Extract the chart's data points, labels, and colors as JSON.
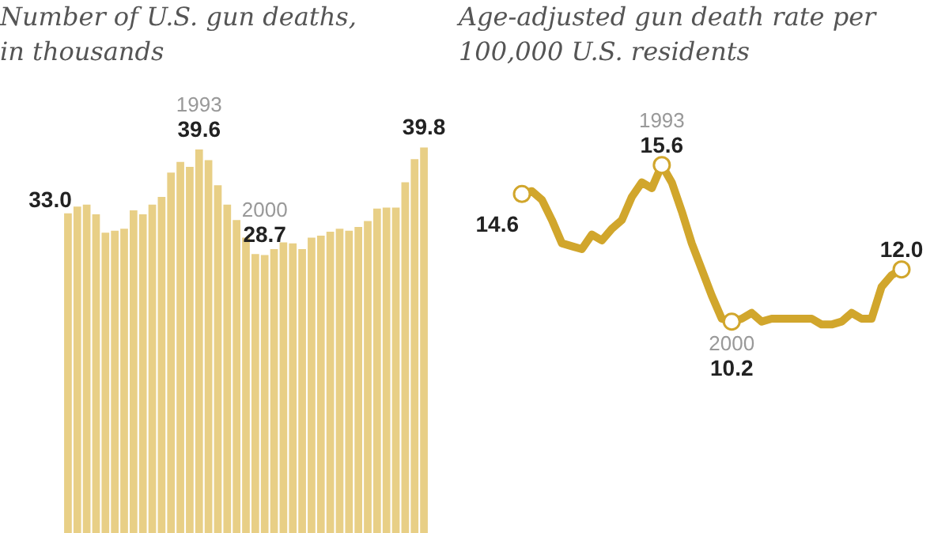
{
  "chart_data": [
    {
      "type": "bar",
      "title": "Number of U.S. gun deaths, in thousands",
      "tick_labels": false,
      "categories": [
        null,
        null,
        null,
        null,
        null,
        null,
        null,
        null,
        null,
        null,
        null,
        null,
        null,
        null,
        "1993",
        null,
        null,
        null,
        null,
        null,
        null,
        "2000",
        null,
        null,
        null,
        null,
        null,
        null,
        null,
        null,
        null,
        null,
        null,
        null,
        null,
        null,
        null,
        null,
        null
      ],
      "series": [
        {
          "color": "#e8cf86",
          "values": [
            33.0,
            33.7,
            33.9,
            32.9,
            31.0,
            31.2,
            31.4,
            33.3,
            32.9,
            33.9,
            34.7,
            37.2,
            38.3,
            37.8,
            39.6,
            38.5,
            35.9,
            33.9,
            32.3,
            30.5,
            28.8,
            28.7,
            29.3,
            30.0,
            29.9,
            29.3,
            30.5,
            30.7,
            31.1,
            31.4,
            31.2,
            31.6,
            32.2,
            33.5,
            33.6,
            33.6,
            36.2,
            38.6,
            39.8
          ],
          "value_labels": [
            "33.0",
            null,
            null,
            null,
            null,
            null,
            null,
            null,
            null,
            null,
            null,
            null,
            null,
            null,
            "39.6",
            null,
            null,
            null,
            null,
            null,
            null,
            "28.7",
            null,
            null,
            null,
            null,
            null,
            null,
            null,
            null,
            null,
            null,
            null,
            null,
            null,
            null,
            null,
            null,
            "39.8"
          ]
        }
      ]
    },
    {
      "type": "line",
      "title": "Age-adjusted gun death rate per 100,000 U.S. residents",
      "tick_labels": false,
      "marker": "none",
      "line_style": "solid",
      "categories": [
        null,
        null,
        null,
        null,
        null,
        null,
        null,
        null,
        null,
        null,
        null,
        null,
        null,
        null,
        "1993",
        null,
        null,
        null,
        null,
        null,
        null,
        "2000",
        null,
        null,
        null,
        null,
        null,
        null,
        null,
        null,
        null,
        null,
        null,
        null,
        null,
        null,
        null,
        null,
        null
      ],
      "series": [
        {
          "color": "#d1a62c",
          "values": [
            14.6,
            14.7,
            14.4,
            13.7,
            12.9,
            12.8,
            12.7,
            13.2,
            13.0,
            13.4,
            13.7,
            14.5,
            15.0,
            14.8,
            15.6,
            15.0,
            14.0,
            12.9,
            12.0,
            11.1,
            10.3,
            10.2,
            10.3,
            10.5,
            10.2,
            10.3,
            10.3,
            10.3,
            10.3,
            10.3,
            10.1,
            10.1,
            10.2,
            10.5,
            10.3,
            10.3,
            11.4,
            11.8,
            12.0
          ],
          "value_labels": [
            "14.6",
            null,
            null,
            null,
            null,
            null,
            null,
            null,
            null,
            null,
            null,
            null,
            null,
            null,
            "15.6",
            null,
            null,
            null,
            null,
            null,
            null,
            "10.2",
            null,
            null,
            null,
            null,
            null,
            null,
            null,
            null,
            null,
            null,
            null,
            null,
            null,
            null,
            null,
            null,
            "12.0"
          ]
        }
      ]
    }
  ]
}
